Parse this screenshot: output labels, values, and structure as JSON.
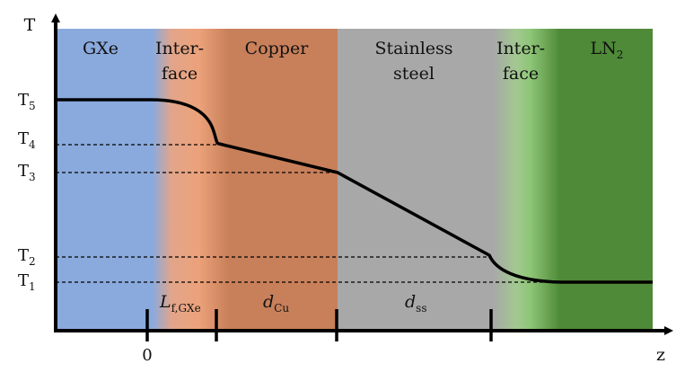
{
  "axes": {
    "y_label": "T",
    "x_label": "z",
    "x_zero_label": "0"
  },
  "regions": {
    "gxe": "GXe",
    "interface_left_1": "Inter-",
    "interface_left_2": "face",
    "copper": "Copper",
    "stainless_1": "Stainless",
    "stainless_2": "steel",
    "interface_right_1": "Inter-",
    "interface_right_2": "face",
    "ln2_main": "LN",
    "ln2_sub": "2"
  },
  "temperature_levels": [
    {
      "main": "T",
      "sub": "5"
    },
    {
      "main": "T",
      "sub": "4"
    },
    {
      "main": "T",
      "sub": "3"
    },
    {
      "main": "T",
      "sub": "2"
    },
    {
      "main": "T",
      "sub": "1"
    }
  ],
  "thickness_labels": {
    "l_main": "L",
    "l_sub": "f,GXe",
    "dcu_main": "d",
    "dcu_sub": "Cu",
    "dss_main": "d",
    "dss_sub": "ss"
  },
  "colors": {
    "gxe": "#8aaadd",
    "interface_left": "#e9a07a",
    "copper": "#c8805a",
    "stainless": "#a8a8a8",
    "interface_right": "#8fc678",
    "ln2": "#4e8a37"
  }
}
